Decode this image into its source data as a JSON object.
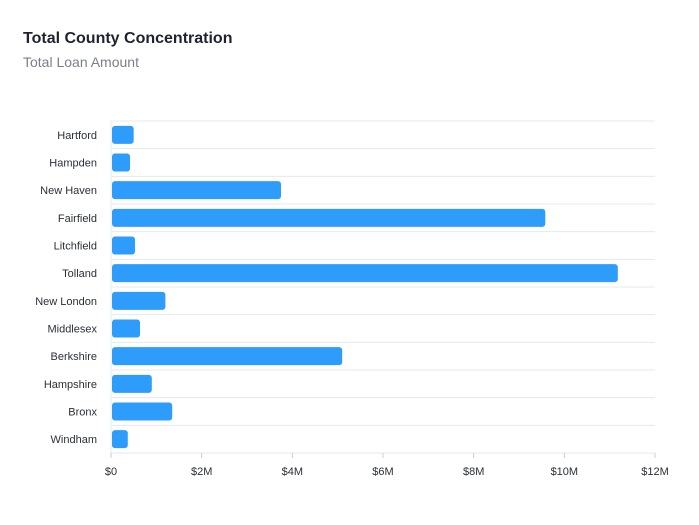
{
  "header": {
    "title": "Total County Concentration",
    "subtitle": "Total Loan Amount"
  },
  "chart_data": {
    "type": "bar",
    "orientation": "horizontal",
    "title": "Total County Concentration",
    "subtitle": "Total Loan Amount",
    "categories": [
      "Hartford",
      "Hampden",
      "New Haven",
      "Fairfield",
      "Litchfield",
      "Tolland",
      "New London",
      "Middlesex",
      "Berkshire",
      "Hampshire",
      "Bronx",
      "Windham"
    ],
    "values": [
      500000,
      420000,
      3750000,
      9580000,
      530000,
      11180000,
      1200000,
      640000,
      5100000,
      900000,
      1350000,
      370000
    ],
    "xlim": [
      0,
      12000000
    ],
    "xticks": [
      0,
      2000000,
      4000000,
      6000000,
      8000000,
      10000000,
      12000000
    ],
    "xtick_labels": [
      "$0",
      "$2M",
      "$4M",
      "$6M",
      "$8M",
      "$10M",
      "$12M"
    ],
    "grid": "horizontal row separators",
    "bar_color": "#2e9cfa"
  }
}
